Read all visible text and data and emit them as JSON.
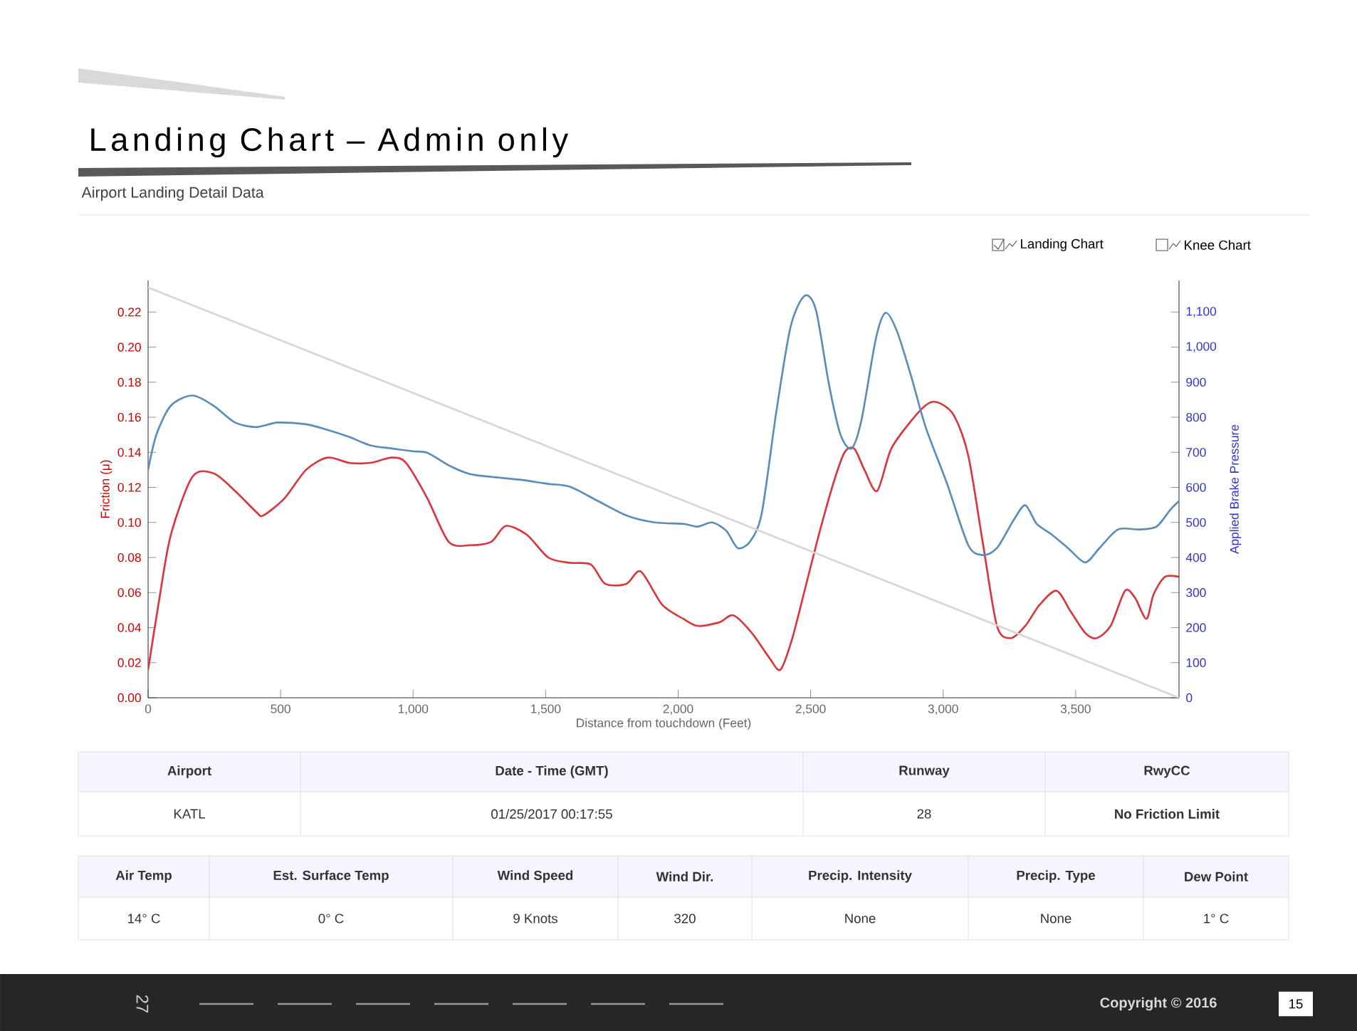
{
  "chart_data": {
    "type": "line",
    "title": "Landing Chart – Admin only",
    "subtitle": "Airport Landing Detail Data",
    "xlabel": "Distance from touchdown (Feet)",
    "ylabel": "Friction (μ)",
    "y2label": "Applied Brake Pressure",
    "xlim": [
      0,
      3890
    ],
    "xticks": [
      0,
      500,
      {
        "value": 1000,
        "label": "1,000"
      },
      {
        "value": 1500,
        "label": "1,500"
      },
      {
        "value": 2000,
        "label": "2,000"
      },
      {
        "value": 2500,
        "label": "2,500"
      },
      {
        "value": 3000,
        "label": "3,000"
      },
      {
        "value": 3500,
        "label": "3,500"
      }
    ],
    "ylim": [
      0,
      0.238
    ],
    "yticks": [
      {
        "value": 0,
        "label": "0.00"
      },
      {
        "value": 0.02,
        "label": "0.02"
      },
      {
        "value": 0.04,
        "label": "0.04"
      },
      {
        "value": 0.06,
        "label": "0.06"
      },
      {
        "value": 0.08,
        "label": "0.08"
      },
      {
        "value": 0.1,
        "label": "0.10"
      },
      {
        "value": 0.12,
        "label": "0.12"
      },
      {
        "value": 0.14,
        "label": "0.14"
      },
      {
        "value": 0.16,
        "label": "0.16"
      },
      {
        "value": 0.18,
        "label": "0.18"
      },
      {
        "value": 0.2,
        "label": "0.20"
      },
      {
        "value": 0.22,
        "label": "0.22"
      }
    ],
    "y2lim": [
      0,
      1190
    ],
    "y2ticks": [
      0,
      100,
      200,
      300,
      400,
      500,
      600,
      700,
      800,
      900,
      {
        "value": 1000,
        "label": "1,000"
      },
      {
        "value": 1100,
        "label": "1,100"
      }
    ],
    "marker": "none",
    "line_style": "solid",
    "series": [
      {
        "color": "#d9363e",
        "x": [
          0,
          43,
          86,
          167,
          247,
          328,
          408,
          435,
          516,
          596,
          677,
          758,
          838,
          919,
          973,
          1053,
          1134,
          1214,
          1295,
          1349,
          1429,
          1510,
          1591,
          1671,
          1725,
          1805,
          1859,
          1940,
          2020,
          2074,
          2155,
          2209,
          2278,
          2343,
          2386,
          2429,
          2477,
          2531,
          2585,
          2628,
          2665,
          2703,
          2751,
          2804,
          2885,
          2945,
          2988,
          3041,
          3095,
          3149,
          3203,
          3256,
          3310,
          3364,
          3428,
          3482,
          3536,
          3579,
          3632,
          3686,
          3724,
          3767,
          3794,
          3837,
          3890
        ],
        "values": [
          0.016,
          0.057,
          0.093,
          0.126,
          0.128,
          0.118,
          0.106,
          0.104,
          0.114,
          0.13,
          0.137,
          0.134,
          0.134,
          0.137,
          0.134,
          0.114,
          0.089,
          0.087,
          0.089,
          0.098,
          0.093,
          0.08,
          0.077,
          0.076,
          0.065,
          0.065,
          0.072,
          0.053,
          0.045,
          0.041,
          0.043,
          0.047,
          0.037,
          0.023,
          0.016,
          0.033,
          0.061,
          0.093,
          0.122,
          0.14,
          0.142,
          0.13,
          0.118,
          0.142,
          0.159,
          0.168,
          0.168,
          0.161,
          0.138,
          0.089,
          0.041,
          0.034,
          0.041,
          0.053,
          0.061,
          0.049,
          0.037,
          0.034,
          0.041,
          0.061,
          0.057,
          0.045,
          0.059,
          0.069,
          0.069
        ]
      },
      {
        "color": "#5b8db8",
        "axis": "y2",
        "x": [
          0,
          32,
          86,
          167,
          247,
          328,
          408,
          489,
          596,
          677,
          758,
          838,
          919,
          999,
          1053,
          1134,
          1214,
          1295,
          1402,
          1510,
          1591,
          1698,
          1805,
          1913,
          2020,
          2074,
          2128,
          2182,
          2225,
          2273,
          2316,
          2370,
          2424,
          2477,
          2520,
          2569,
          2612,
          2654,
          2692,
          2746,
          2783,
          2826,
          2880,
          2934,
          3015,
          3095,
          3149,
          3203,
          3267,
          3310,
          3353,
          3407,
          3471,
          3536,
          3590,
          3660,
          3740,
          3805,
          3858,
          3890
        ],
        "values": [
          650,
          752,
          833,
          862,
          833,
          785,
          772,
          785,
          780,
          764,
          744,
          720,
          711,
          703,
          699,
          663,
          638,
          630,
          622,
          610,
          602,
          561,
          520,
          500,
          496,
          488,
          500,
          476,
          427,
          447,
          528,
          813,
          1057,
          1146,
          1106,
          894,
          752,
          711,
          793,
          1024,
          1098,
          1045,
          915,
          772,
          610,
          435,
          407,
          427,
          508,
          549,
          496,
          467,
          427,
          386,
          427,
          480,
          480,
          488,
          537,
          561
        ]
      },
      {
        "color": "#d6d6d6",
        "axis": "y2",
        "x": [
          0,
          3890
        ],
        "values": [
          1170,
          0
        ]
      }
    ],
    "annotations": [
      "Landing Chart",
      "Knee Chart",
      "Airport",
      "Date - Time (GMT)",
      "Runway",
      "RwyCC",
      "KATL",
      "01/25/2017 00:17:55",
      "28",
      "No Friction Limit",
      "Air Temp",
      "Est. Surface Temp",
      "Wind Speed",
      "Wind Dir.",
      "Precip. Intensity",
      "Precip. Type",
      "Dew Point",
      "14° C",
      "0° C",
      "9 Knots",
      "320",
      "None",
      "None",
      "1° C",
      "Copyright © 2016",
      "15",
      "27"
    ]
  }
}
